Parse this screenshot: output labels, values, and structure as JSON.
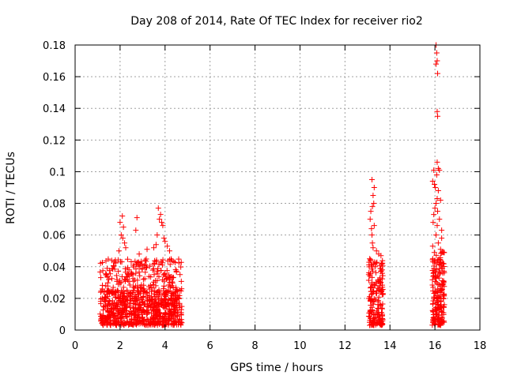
{
  "chart_data": {
    "type": "scatter",
    "title": "Day 208 of 2014, Rate Of TEC Index for receiver rio2",
    "xlabel": "GPS time / hours",
    "ylabel": "ROTI / TECUs",
    "xlim": [
      0,
      18
    ],
    "ylim": [
      0,
      0.18
    ],
    "x_ticks": [
      0,
      2,
      4,
      6,
      8,
      10,
      12,
      14,
      16,
      18
    ],
    "y_ticks": [
      0,
      0.02,
      0.04,
      0.06,
      0.08,
      0.1,
      0.12,
      0.14,
      0.16,
      0.18
    ],
    "x_tick_labels": [
      "0",
      "2",
      "4",
      "6",
      "8",
      "10",
      "12",
      "14",
      "16",
      "18"
    ],
    "y_tick_labels": [
      "0",
      "0.02",
      "0.04",
      "0.06",
      "0.08",
      "0.1",
      "0.12",
      "0.14",
      "0.16",
      "0.18"
    ],
    "grid": true,
    "marker": "+",
    "marker_color": "#ff0000",
    "series": [
      {
        "name": "ROTI",
        "clusters": [
          {
            "x_range": [
              1.1,
              4.75
            ],
            "y_range": [
              0.003,
              0.045
            ],
            "n": 500
          },
          {
            "x_range": [
              1.1,
              4.75
            ],
            "y_range": [
              0.003,
              0.025
            ],
            "n": 400
          }
        ],
        "points": [
          [
            2.0,
            0.068
          ],
          [
            2.1,
            0.072
          ],
          [
            2.15,
            0.065
          ],
          [
            2.05,
            0.06
          ],
          [
            2.12,
            0.058
          ],
          [
            2.2,
            0.055
          ],
          [
            2.25,
            0.052
          ],
          [
            1.95,
            0.05
          ],
          [
            2.75,
            0.071
          ],
          [
            2.7,
            0.063
          ],
          [
            2.85,
            0.048
          ],
          [
            3.2,
            0.051
          ],
          [
            3.7,
            0.077
          ],
          [
            3.75,
            0.07
          ],
          [
            3.8,
            0.073
          ],
          [
            3.9,
            0.066
          ],
          [
            3.85,
            0.068
          ],
          [
            3.95,
            0.058
          ],
          [
            3.65,
            0.06
          ],
          [
            4.0,
            0.056
          ],
          [
            4.1,
            0.053
          ],
          [
            3.6,
            0.054
          ],
          [
            4.2,
            0.05
          ],
          [
            3.5,
            0.052
          ],
          [
            13.2,
            0.095
          ],
          [
            13.3,
            0.09
          ],
          [
            13.25,
            0.085
          ],
          [
            13.28,
            0.08
          ],
          [
            13.22,
            0.078
          ],
          [
            13.15,
            0.075
          ],
          [
            13.12,
            0.07
          ],
          [
            13.3,
            0.066
          ],
          [
            13.18,
            0.064
          ],
          [
            13.2,
            0.06
          ],
          [
            13.22,
            0.055
          ],
          [
            13.25,
            0.052
          ],
          [
            13.4,
            0.05
          ],
          [
            13.5,
            0.048
          ],
          [
            13.6,
            0.047
          ],
          [
            13.65,
            0.038
          ],
          [
            13.1,
            0.045
          ],
          [
            13.35,
            0.04
          ],
          [
            16.05,
            0.18
          ],
          [
            16.08,
            0.175
          ],
          [
            16.1,
            0.17
          ],
          [
            16.05,
            0.168
          ],
          [
            16.12,
            0.162
          ],
          [
            16.1,
            0.138
          ],
          [
            16.12,
            0.135
          ],
          [
            16.1,
            0.106
          ],
          [
            16.15,
            0.102
          ],
          [
            16.2,
            0.101
          ],
          [
            15.95,
            0.101
          ],
          [
            16.08,
            0.098
          ],
          [
            15.9,
            0.094
          ],
          [
            15.98,
            0.092
          ],
          [
            16.02,
            0.09
          ],
          [
            16.15,
            0.088
          ],
          [
            16.1,
            0.083
          ],
          [
            16.25,
            0.082
          ],
          [
            16.05,
            0.08
          ],
          [
            16.0,
            0.077
          ],
          [
            16.12,
            0.075
          ],
          [
            15.95,
            0.073
          ],
          [
            16.2,
            0.07
          ],
          [
            15.92,
            0.068
          ],
          [
            16.1,
            0.066
          ],
          [
            16.3,
            0.063
          ],
          [
            16.05,
            0.06
          ],
          [
            16.3,
            0.058
          ],
          [
            16.15,
            0.055
          ],
          [
            15.9,
            0.053
          ],
          [
            16.25,
            0.051
          ],
          [
            16.35,
            0.049
          ]
        ]
      }
    ]
  }
}
